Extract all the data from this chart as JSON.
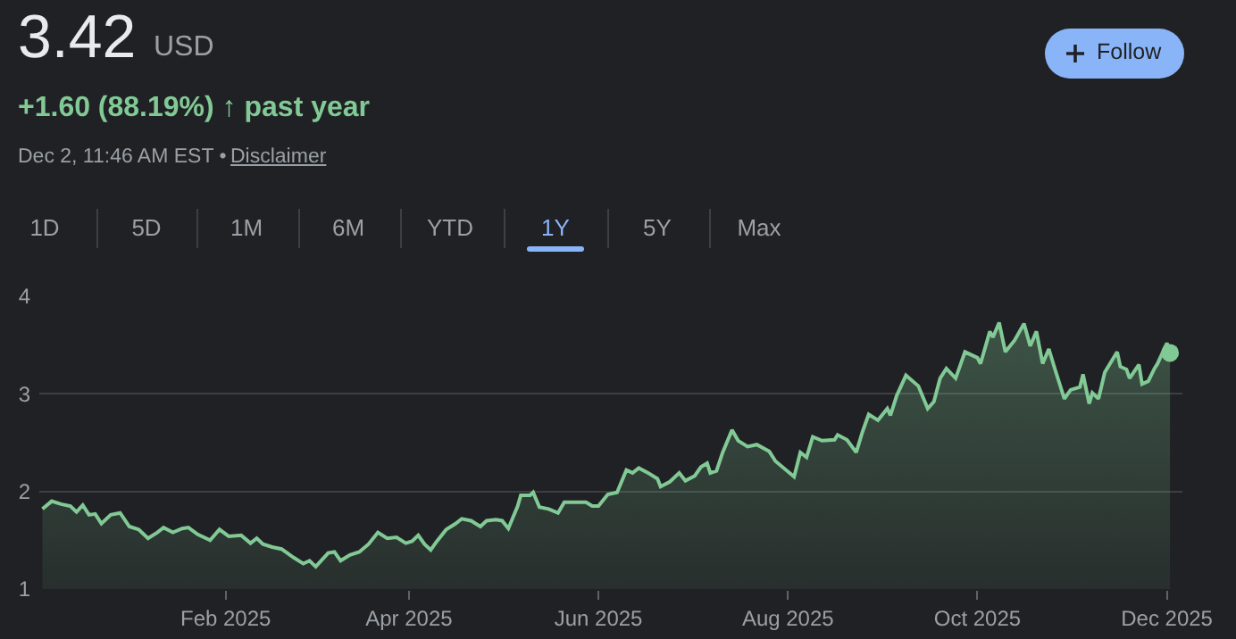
{
  "chart_data": {
    "type": "area",
    "title": "3.42",
    "subtitle": "+1.60 (88.19%) ↑ past year",
    "annotations": [
      "USD",
      "Dec 2, 11:46 AM EST •",
      "Disclaimer",
      "Follow",
      "1D",
      "5D",
      "1M",
      "6M",
      "YTD",
      "1Y",
      "5Y",
      "Max"
    ],
    "xlim": [
      "2024-12-03",
      "2025-12-06"
    ],
    "xticks": [
      {
        "value": "2025-02-01",
        "label": "Feb 2025"
      },
      {
        "value": "2025-04-01",
        "label": "Apr 2025"
      },
      {
        "value": "2025-06-01",
        "label": "Jun 2025"
      },
      {
        "value": "2025-08-01",
        "label": "Aug 2025"
      },
      {
        "value": "2025-10-01",
        "label": "Oct 2025"
      },
      {
        "value": "2025-12-01",
        "label": "Dec 2025"
      }
    ],
    "ylim": [
      1,
      4
    ],
    "yticks": [
      1,
      2,
      3,
      4
    ],
    "grid": "y",
    "marker": "none",
    "line_style": "solid",
    "series": [
      {
        "color": "#81c995",
        "x": [
          "2024-12-04",
          "2024-12-07",
          "2024-12-10",
          "2024-12-13",
          "2024-12-15",
          "2024-12-17",
          "2024-12-19",
          "2024-12-21",
          "2024-12-23",
          "2024-12-26",
          "2024-12-29",
          "2025-01-01",
          "2025-01-04",
          "2025-01-07",
          "2025-01-10",
          "2025-01-12",
          "2025-01-15",
          "2025-01-18",
          "2025-01-20",
          "2025-01-23",
          "2025-01-27",
          "2025-01-30",
          "2025-02-02",
          "2025-02-06",
          "2025-02-09",
          "2025-02-11",
          "2025-02-13",
          "2025-02-16",
          "2025-02-19",
          "2025-02-23",
          "2025-02-26",
          "2025-02-28",
          "2025-03-02",
          "2025-03-06",
          "2025-03-08",
          "2025-03-10",
          "2025-03-13",
          "2025-03-16",
          "2025-03-19",
          "2025-03-22",
          "2025-03-25",
          "2025-03-28",
          "2025-03-31",
          "2025-04-02",
          "2025-04-04",
          "2025-04-06",
          "2025-04-08",
          "2025-04-10",
          "2025-04-13",
          "2025-04-16",
          "2025-04-18",
          "2025-04-21",
          "2025-04-24",
          "2025-04-26",
          "2025-04-29",
          "2025-05-01",
          "2025-05-03",
          "2025-05-06",
          "2025-05-07",
          "2025-05-10",
          "2025-05-11",
          "2025-05-13",
          "2025-05-16",
          "2025-05-19",
          "2025-05-21",
          "2025-05-24",
          "2025-05-28",
          "2025-05-30",
          "2025-06-01",
          "2025-06-04",
          "2025-06-07",
          "2025-06-10",
          "2025-06-12",
          "2025-06-14",
          "2025-06-17",
          "2025-06-20",
          "2025-06-21",
          "2025-06-24",
          "2025-06-27",
          "2025-06-29",
          "2025-07-02",
          "2025-07-04",
          "2025-07-06",
          "2025-07-07",
          "2025-07-09",
          "2025-07-11",
          "2025-07-14",
          "2025-07-16",
          "2025-07-19",
          "2025-07-22",
          "2025-07-26",
          "2025-07-28",
          "2025-08-03",
          "2025-08-05",
          "2025-08-07",
          "2025-08-09",
          "2025-08-12",
          "2025-08-16",
          "2025-08-17",
          "2025-08-20",
          "2025-08-23",
          "2025-08-25",
          "2025-08-27",
          "2025-08-30",
          "2025-09-02",
          "2025-09-03",
          "2025-09-05",
          "2025-09-08",
          "2025-09-12",
          "2025-09-15",
          "2025-09-17",
          "2025-09-19",
          "2025-09-21",
          "2025-09-24",
          "2025-09-27",
          "2025-10-01",
          "2025-10-02",
          "2025-10-05",
          "2025-10-06",
          "2025-10-08",
          "2025-10-10",
          "2025-10-13",
          "2025-10-16",
          "2025-10-18",
          "2025-10-20",
          "2025-10-22",
          "2025-10-24",
          "2025-10-26",
          "2025-10-29",
          "2025-10-31",
          "2025-11-03",
          "2025-11-04",
          "2025-11-06",
          "2025-11-07",
          "2025-11-09",
          "2025-11-11",
          "2025-11-15",
          "2025-11-16",
          "2025-11-18",
          "2025-11-19",
          "2025-11-22",
          "2025-11-23",
          "2025-11-25",
          "2025-11-27",
          "2025-11-28",
          "2025-12-01",
          "2025-12-02"
        ],
        "values": [
          1.82,
          1.9,
          1.87,
          1.85,
          1.79,
          1.86,
          1.76,
          1.77,
          1.67,
          1.76,
          1.78,
          1.64,
          1.61,
          1.52,
          1.58,
          1.63,
          1.58,
          1.62,
          1.63,
          1.56,
          1.5,
          1.61,
          1.54,
          1.55,
          1.47,
          1.52,
          1.46,
          1.43,
          1.41,
          1.32,
          1.26,
          1.29,
          1.23,
          1.37,
          1.38,
          1.29,
          1.35,
          1.38,
          1.46,
          1.58,
          1.52,
          1.53,
          1.47,
          1.49,
          1.55,
          1.46,
          1.4,
          1.49,
          1.61,
          1.67,
          1.72,
          1.7,
          1.64,
          1.7,
          1.71,
          1.7,
          1.62,
          1.85,
          1.96,
          1.96,
          1.99,
          1.84,
          1.82,
          1.78,
          1.89,
          1.89,
          1.89,
          1.85,
          1.85,
          1.97,
          1.99,
          2.22,
          2.19,
          2.24,
          2.19,
          2.13,
          2.05,
          2.1,
          2.19,
          2.11,
          2.16,
          2.25,
          2.29,
          2.19,
          2.21,
          2.4,
          2.63,
          2.52,
          2.46,
          2.48,
          2.41,
          2.31,
          2.15,
          2.4,
          2.35,
          2.56,
          2.52,
          2.53,
          2.58,
          2.53,
          2.4,
          2.61,
          2.79,
          2.73,
          2.85,
          2.78,
          2.98,
          3.19,
          3.08,
          2.85,
          2.92,
          3.16,
          3.26,
          3.16,
          3.43,
          3.37,
          3.31,
          3.64,
          3.58,
          3.73,
          3.43,
          3.55,
          3.72,
          3.49,
          3.64,
          3.31,
          3.46,
          3.25,
          2.95,
          3.04,
          3.07,
          3.2,
          2.9,
          3.01,
          2.95,
          3.22,
          3.43,
          3.28,
          3.25,
          3.16,
          3.3,
          3.1,
          3.13,
          3.26,
          3.31,
          3.52,
          3.42
        ]
      },
      {
        "type": "scatter",
        "marker": "circle",
        "color": "#81c995",
        "x": [
          "2025-12-02"
        ],
        "values": [
          3.42
        ]
      }
    ]
  }
}
